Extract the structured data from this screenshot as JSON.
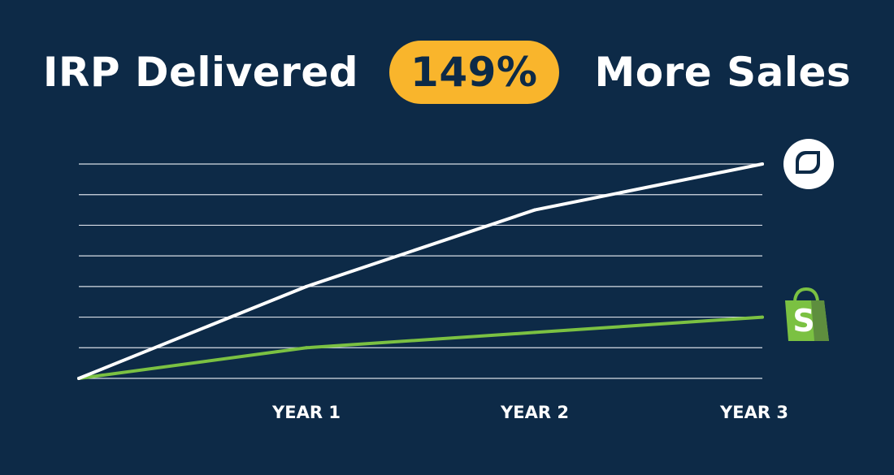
{
  "header": {
    "title_prefix": "IRP Delivered",
    "highlight": "149%",
    "title_suffix": "More Sales"
  },
  "colors": {
    "background": "#0d2a47",
    "highlight_badge": "#f9b52c",
    "irp_line": "#ffffff",
    "shopify_line": "#7bc142",
    "gridline": "#d7dde6"
  },
  "chart_data": {
    "type": "line",
    "title": "",
    "x": [
      "",
      "YEAR 1",
      "YEAR 2",
      "YEAR 3"
    ],
    "xlabel": "",
    "ylabel": "",
    "ylim": [
      0,
      7
    ],
    "grid": true,
    "legend": "icons at line ends (right)",
    "series": [
      {
        "icon": "irp-logo-icon",
        "values": [
          0,
          3.0,
          5.5,
          7.0
        ]
      },
      {
        "icon": "shopify-logo-icon",
        "values": [
          0,
          1.0,
          1.5,
          2.0
        ]
      }
    ]
  }
}
